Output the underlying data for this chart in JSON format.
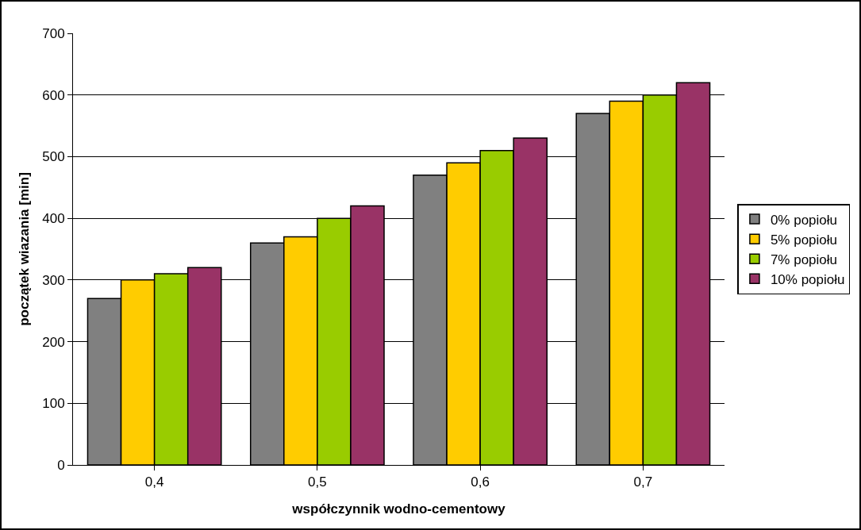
{
  "chart_data": {
    "type": "bar",
    "xlabel": "współczynnik wodno-cementowy",
    "ylabel": "początek wiazania [min]",
    "categories": [
      "0,4",
      "0,5",
      "0,6",
      "0,7"
    ],
    "series": [
      {
        "name": "0% popiołu",
        "color": "#808080",
        "values": [
          270,
          360,
          470,
          570
        ]
      },
      {
        "name": "5% popiołu",
        "color": "#ffcc00",
        "values": [
          300,
          370,
          490,
          590
        ]
      },
      {
        "name": "7% popiołu",
        "color": "#99cc00",
        "values": [
          310,
          400,
          510,
          600
        ]
      },
      {
        "name": "10% popiołu",
        "color": "#993366",
        "values": [
          320,
          420,
          530,
          620
        ]
      }
    ],
    "ylim": [
      0,
      700
    ],
    "yticks": [
      0,
      100,
      200,
      300,
      400,
      500,
      600,
      700
    ],
    "grid": "y",
    "legend": "right"
  }
}
